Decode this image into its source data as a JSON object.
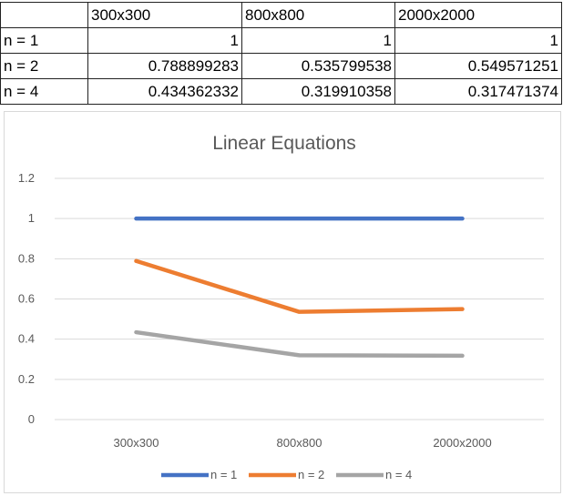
{
  "table": {
    "header": [
      "",
      "300x300",
      "800x800",
      "2000x2000"
    ],
    "rows": [
      {
        "label": "n = 1",
        "values": [
          "1",
          "1",
          "1"
        ]
      },
      {
        "label": "n = 2",
        "values": [
          "0.788899283",
          "0.535799538",
          "0.549571251"
        ]
      },
      {
        "label": "n = 4",
        "values": [
          "0.434362332",
          "0.319910358",
          "0.317471374"
        ]
      }
    ]
  },
  "chart_data": {
    "type": "line",
    "title": "Linear Equations",
    "categories": [
      "300x300",
      "800x800",
      "2000x2000"
    ],
    "series": [
      {
        "name": "n = 1",
        "values": [
          1,
          1,
          1
        ],
        "color": "#4472c4"
      },
      {
        "name": "n = 2",
        "values": [
          0.788899283,
          0.535799538,
          0.549571251
        ],
        "color": "#ed7d31"
      },
      {
        "name": "n = 4",
        "values": [
          0.434362332,
          0.319910358,
          0.317471374
        ],
        "color": "#a5a5a5"
      }
    ],
    "ylim": [
      0,
      1.2
    ],
    "yticks": [
      "0",
      "0.2",
      "0.4",
      "0.6",
      "0.8",
      "1",
      "1.2"
    ],
    "grid": true,
    "legend": "bottom"
  }
}
